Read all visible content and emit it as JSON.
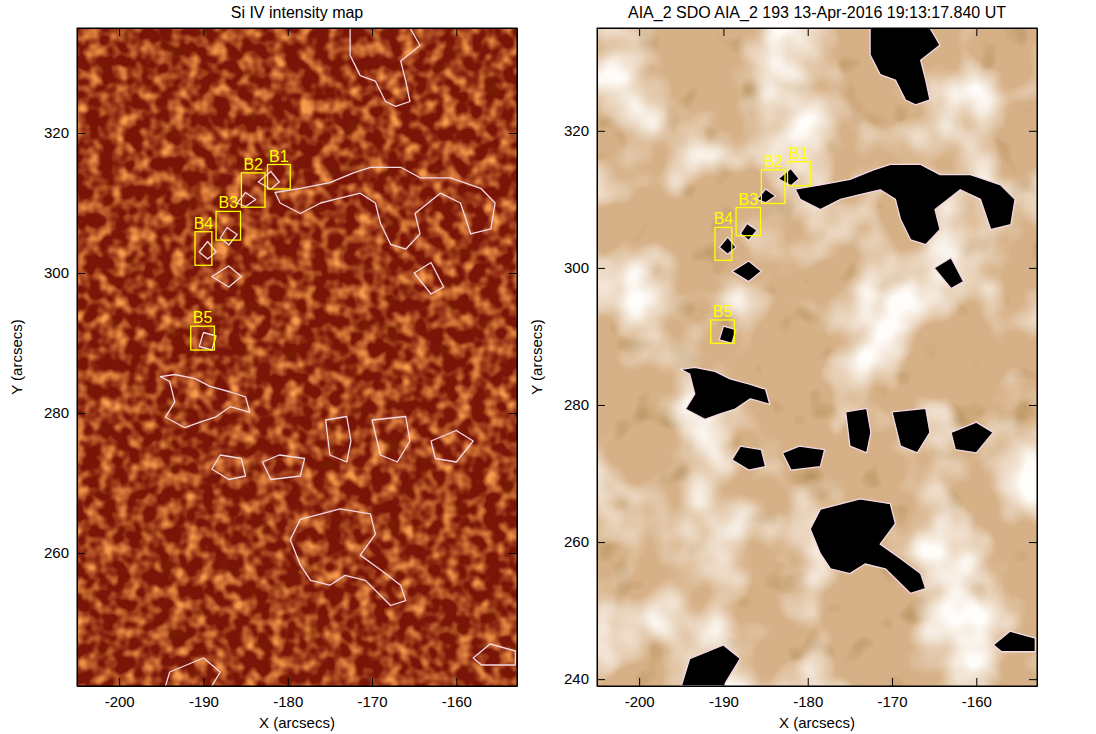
{
  "chart_data": [
    {
      "type": "image",
      "title": "Si IV intensity map",
      "x_label": "X (arcsecs)",
      "y_label": "Y (arcsecs)",
      "color": "#7a1507",
      "xlim": [
        -205,
        -152.8
      ],
      "ylim": [
        241,
        335
      ],
      "xticks": [
        -200,
        -190,
        -180,
        -170,
        -160
      ],
      "yticks": [
        260,
        280,
        300,
        320
      ],
      "boxes": [
        {
          "label": "B1",
          "x": [
            -182.4,
            -179.7
          ],
          "y": [
            312.0,
            315.5
          ]
        },
        {
          "label": "B2",
          "x": [
            -185.5,
            -182.7
          ],
          "y": [
            309.4,
            314.3
          ]
        },
        {
          "label": "B3",
          "x": [
            -188.5,
            -185.6
          ],
          "y": [
            304.7,
            308.8
          ]
        },
        {
          "label": "B4",
          "x": [
            -191.0,
            -189.0
          ],
          "y": [
            301.1,
            305.9
          ]
        },
        {
          "label": "B5",
          "x": [
            -191.5,
            -188.7
          ],
          "y": [
            289.0,
            292.4
          ]
        }
      ],
      "contours": [
        [
          [
            -172.6,
            335
          ],
          [
            -172.6,
            331.1
          ],
          [
            -171.4,
            328.2
          ],
          [
            -169.6,
            327.4
          ],
          [
            -168.4,
            324.5
          ],
          [
            -167.2,
            323.8
          ],
          [
            -165.5,
            324.5
          ],
          [
            -166.0,
            327.4
          ],
          [
            -166.6,
            330.3
          ],
          [
            -164.3,
            332.5
          ],
          [
            -165.5,
            335
          ]
        ],
        [
          [
            -180.9,
            310.0
          ],
          [
            -178.5,
            308.5
          ],
          [
            -176.1,
            310.0
          ],
          [
            -173.8,
            310.7
          ],
          [
            -171.4,
            311.4
          ],
          [
            -169.6,
            310.0
          ],
          [
            -169.0,
            307.1
          ],
          [
            -167.8,
            304.1
          ],
          [
            -166.0,
            303.4
          ],
          [
            -164.3,
            305.6
          ],
          [
            -164.9,
            308.5
          ],
          [
            -161.9,
            311.4
          ],
          [
            -159.5,
            310.0
          ],
          [
            -158.3,
            305.6
          ],
          [
            -155.9,
            306.3
          ],
          [
            -155.4,
            310.0
          ],
          [
            -157.1,
            312.1
          ],
          [
            -160.7,
            313.6
          ],
          [
            -164.3,
            313.6
          ],
          [
            -166.6,
            315.1
          ],
          [
            -170.2,
            315.1
          ],
          [
            -172.2,
            314.3
          ],
          [
            -175.0,
            312.9
          ],
          [
            -178.5,
            312.1
          ],
          [
            -181.5,
            311.5
          ]
        ],
        [
          [
            -183.5,
            313.0
          ],
          [
            -182.0,
            314.5
          ],
          [
            -181.0,
            313.0
          ],
          [
            -182.0,
            312.0
          ]
        ],
        [
          [
            -186.0,
            310.0
          ],
          [
            -185.0,
            311.5
          ],
          [
            -183.8,
            310.5
          ],
          [
            -185.0,
            309.5
          ]
        ],
        [
          [
            -188.0,
            305.0
          ],
          [
            -187.2,
            306.5
          ],
          [
            -186.0,
            305.5
          ],
          [
            -187.0,
            304.0
          ]
        ],
        [
          [
            -190.5,
            303.0
          ],
          [
            -189.5,
            304.5
          ],
          [
            -188.5,
            303.0
          ],
          [
            -189.5,
            302.0
          ]
        ],
        [
          [
            -189.0,
            299.5
          ],
          [
            -187.0,
            301.0
          ],
          [
            -185.5,
            299.5
          ],
          [
            -187.0,
            298.0
          ]
        ],
        [
          [
            -190.5,
            289.5
          ],
          [
            -190.0,
            291.5
          ],
          [
            -188.5,
            291.0
          ],
          [
            -189.0,
            289.0
          ]
        ],
        [
          [
            -165.0,
            300.0
          ],
          [
            -163.0,
            301.5
          ],
          [
            -161.5,
            298.0
          ],
          [
            -163.0,
            297.0
          ]
        ],
        [
          [
            -195.1,
            285.2
          ],
          [
            -194.0,
            284.5
          ],
          [
            -193.4,
            281.6
          ],
          [
            -194.5,
            279.4
          ],
          [
            -192.2,
            277.9
          ],
          [
            -190.4,
            278.7
          ],
          [
            -188.6,
            279.4
          ],
          [
            -186.8,
            280.9
          ],
          [
            -184.5,
            280.1
          ],
          [
            -185.0,
            282.3
          ],
          [
            -186.8,
            283.0
          ],
          [
            -189.2,
            283.8
          ],
          [
            -191.0,
            284.9
          ],
          [
            -193.4,
            285.5
          ]
        ],
        [
          [
            -189.0,
            272.0
          ],
          [
            -188.0,
            274.0
          ],
          [
            -185.5,
            273.5
          ],
          [
            -185.0,
            271.0
          ],
          [
            -187.0,
            270.5
          ]
        ],
        [
          [
            -183.0,
            273.0
          ],
          [
            -181.0,
            274.0
          ],
          [
            -178.0,
            273.5
          ],
          [
            -178.5,
            271.0
          ],
          [
            -182.0,
            270.5
          ]
        ],
        [
          [
            -175.5,
            279.0
          ],
          [
            -173.0,
            279.5
          ],
          [
            -172.5,
            276.0
          ],
          [
            -173.0,
            273.0
          ],
          [
            -175.0,
            274.0
          ]
        ],
        [
          [
            -170.0,
            279.0
          ],
          [
            -166.0,
            279.5
          ],
          [
            -165.5,
            276.0
          ],
          [
            -167.0,
            273.0
          ],
          [
            -169.0,
            274.0
          ]
        ],
        [
          [
            -163.0,
            276.0
          ],
          [
            -160.0,
            277.5
          ],
          [
            -158.0,
            276.0
          ],
          [
            -160.0,
            273.0
          ],
          [
            -162.5,
            273.5
          ]
        ],
        [
          [
            -179.7,
            261.9
          ],
          [
            -178.5,
            264.8
          ],
          [
            -173.8,
            266.3
          ],
          [
            -170.2,
            265.6
          ],
          [
            -169.6,
            262.7
          ],
          [
            -171.4,
            259.7
          ],
          [
            -169.0,
            257.6
          ],
          [
            -166.6,
            255.4
          ],
          [
            -166.0,
            253.2
          ],
          [
            -167.8,
            252.5
          ],
          [
            -170.8,
            256.1
          ],
          [
            -173.2,
            256.8
          ],
          [
            -175.0,
            255.4
          ],
          [
            -177.3,
            256.1
          ],
          [
            -178.5,
            258.3
          ]
        ],
        [
          [
            -195.0,
            239.0
          ],
          [
            -194.0,
            243.0
          ],
          [
            -190.0,
            245.0
          ],
          [
            -188.0,
            243.0
          ],
          [
            -190.0,
            239.0
          ]
        ],
        [
          [
            -158.0,
            245.0
          ],
          [
            -156.0,
            247.0
          ],
          [
            -153.0,
            246.0
          ],
          [
            -153.0,
            244.0
          ],
          [
            -157.0,
            244.0
          ]
        ]
      ]
    },
    {
      "type": "image",
      "title": "AIA_2 SDO AIA_2 193 13-Apr-2016 19:13:17.840 UT",
      "x_label": "X (arcsecs)",
      "y_label": "Y (arcsecs)",
      "color": "#d6b086",
      "xlim": [
        -205,
        -152.8
      ],
      "ylim": [
        239,
        335
      ],
      "xticks": [
        -200,
        -190,
        -180,
        -170,
        -160
      ],
      "yticks": [
        240,
        260,
        280,
        300,
        320
      ],
      "boxes": [
        {
          "label": "B1",
          "x": [
            -182.4,
            -179.7
          ],
          "y": [
            312.0,
            315.5
          ]
        },
        {
          "label": "B2",
          "x": [
            -185.5,
            -182.7
          ],
          "y": [
            309.4,
            314.3
          ]
        },
        {
          "label": "B3",
          "x": [
            -188.5,
            -185.6
          ],
          "y": [
            304.7,
            308.8
          ]
        },
        {
          "label": "B4",
          "x": [
            -191.0,
            -189.0
          ],
          "y": [
            301.1,
            305.9
          ]
        },
        {
          "label": "B5",
          "x": [
            -191.5,
            -188.7
          ],
          "y": [
            289.0,
            292.4
          ]
        }
      ],
      "contours": [
        [
          [
            -172.6,
            335
          ],
          [
            -172.6,
            331.1
          ],
          [
            -171.4,
            328.2
          ],
          [
            -169.6,
            327.4
          ],
          [
            -168.4,
            324.5
          ],
          [
            -167.2,
            323.8
          ],
          [
            -165.5,
            324.5
          ],
          [
            -166.0,
            327.4
          ],
          [
            -166.6,
            330.3
          ],
          [
            -164.3,
            332.5
          ],
          [
            -165.5,
            335
          ]
        ],
        [
          [
            -180.9,
            310.0
          ],
          [
            -178.5,
            308.5
          ],
          [
            -176.1,
            310.0
          ],
          [
            -173.8,
            310.7
          ],
          [
            -171.4,
            311.4
          ],
          [
            -169.6,
            310.0
          ],
          [
            -169.0,
            307.1
          ],
          [
            -167.8,
            304.1
          ],
          [
            -166.0,
            303.4
          ],
          [
            -164.3,
            305.6
          ],
          [
            -164.9,
            308.5
          ],
          [
            -161.9,
            311.4
          ],
          [
            -159.5,
            310.0
          ],
          [
            -158.3,
            305.6
          ],
          [
            -155.9,
            306.3
          ],
          [
            -155.4,
            310.0
          ],
          [
            -157.1,
            312.1
          ],
          [
            -160.7,
            313.6
          ],
          [
            -164.3,
            313.6
          ],
          [
            -166.6,
            315.1
          ],
          [
            -170.2,
            315.1
          ],
          [
            -172.2,
            314.3
          ],
          [
            -175.0,
            312.9
          ],
          [
            -178.5,
            312.1
          ],
          [
            -181.5,
            311.5
          ]
        ],
        [
          [
            -183.5,
            313.0
          ],
          [
            -182.0,
            314.5
          ],
          [
            -181.0,
            313.0
          ],
          [
            -182.0,
            312.0
          ]
        ],
        [
          [
            -186.0,
            310.0
          ],
          [
            -185.0,
            311.5
          ],
          [
            -183.8,
            310.5
          ],
          [
            -185.0,
            309.5
          ]
        ],
        [
          [
            -188.0,
            305.0
          ],
          [
            -187.2,
            306.5
          ],
          [
            -186.0,
            305.5
          ],
          [
            -187.0,
            304.0
          ]
        ],
        [
          [
            -190.5,
            303.0
          ],
          [
            -189.5,
            304.5
          ],
          [
            -188.5,
            303.0
          ],
          [
            -189.5,
            302.0
          ]
        ],
        [
          [
            -189.0,
            299.5
          ],
          [
            -187.0,
            301.0
          ],
          [
            -185.5,
            299.5
          ],
          [
            -187.0,
            298.0
          ]
        ],
        [
          [
            -190.5,
            289.5
          ],
          [
            -190.0,
            291.5
          ],
          [
            -188.5,
            291.0
          ],
          [
            -189.0,
            289.0
          ]
        ],
        [
          [
            -165.0,
            300.0
          ],
          [
            -163.0,
            301.5
          ],
          [
            -161.5,
            298.0
          ],
          [
            -163.0,
            297.0
          ]
        ],
        [
          [
            -195.1,
            285.2
          ],
          [
            -194.0,
            284.5
          ],
          [
            -193.4,
            281.6
          ],
          [
            -194.5,
            279.4
          ],
          [
            -192.2,
            277.9
          ],
          [
            -190.4,
            278.7
          ],
          [
            -188.6,
            279.4
          ],
          [
            -186.8,
            280.9
          ],
          [
            -184.5,
            280.1
          ],
          [
            -185.0,
            282.3
          ],
          [
            -186.8,
            283.0
          ],
          [
            -189.2,
            283.8
          ],
          [
            -191.0,
            284.9
          ],
          [
            -193.4,
            285.5
          ]
        ],
        [
          [
            -189.0,
            272.0
          ],
          [
            -188.0,
            274.0
          ],
          [
            -185.5,
            273.5
          ],
          [
            -185.0,
            271.0
          ],
          [
            -187.0,
            270.5
          ]
        ],
        [
          [
            -183.0,
            273.0
          ],
          [
            -181.0,
            274.0
          ],
          [
            -178.0,
            273.5
          ],
          [
            -178.5,
            271.0
          ],
          [
            -182.0,
            270.5
          ]
        ],
        [
          [
            -175.5,
            279.0
          ],
          [
            -173.0,
            279.5
          ],
          [
            -172.5,
            276.0
          ],
          [
            -173.0,
            273.0
          ],
          [
            -175.0,
            274.0
          ]
        ],
        [
          [
            -170.0,
            279.0
          ],
          [
            -166.0,
            279.5
          ],
          [
            -165.5,
            276.0
          ],
          [
            -167.0,
            273.0
          ],
          [
            -169.0,
            274.0
          ]
        ],
        [
          [
            -163.0,
            276.0
          ],
          [
            -160.0,
            277.5
          ],
          [
            -158.0,
            276.0
          ],
          [
            -160.0,
            273.0
          ],
          [
            -162.5,
            273.5
          ]
        ],
        [
          [
            -179.7,
            261.9
          ],
          [
            -178.5,
            264.8
          ],
          [
            -173.8,
            266.3
          ],
          [
            -170.2,
            265.6
          ],
          [
            -169.6,
            262.7
          ],
          [
            -171.4,
            259.7
          ],
          [
            -169.0,
            257.6
          ],
          [
            -166.6,
            255.4
          ],
          [
            -166.0,
            253.2
          ],
          [
            -167.8,
            252.5
          ],
          [
            -170.8,
            256.1
          ],
          [
            -173.2,
            256.8
          ],
          [
            -175.0,
            255.4
          ],
          [
            -177.3,
            256.1
          ],
          [
            -178.5,
            258.3
          ]
        ],
        [
          [
            -195.0,
            239.0
          ],
          [
            -194.0,
            243.0
          ],
          [
            -190.0,
            245.0
          ],
          [
            -188.0,
            243.0
          ],
          [
            -190.0,
            239.0
          ]
        ],
        [
          [
            -158.0,
            245.0
          ],
          [
            -156.0,
            247.0
          ],
          [
            -153.0,
            246.0
          ],
          [
            -153.0,
            244.0
          ],
          [
            -157.0,
            244.0
          ]
        ]
      ]
    }
  ]
}
